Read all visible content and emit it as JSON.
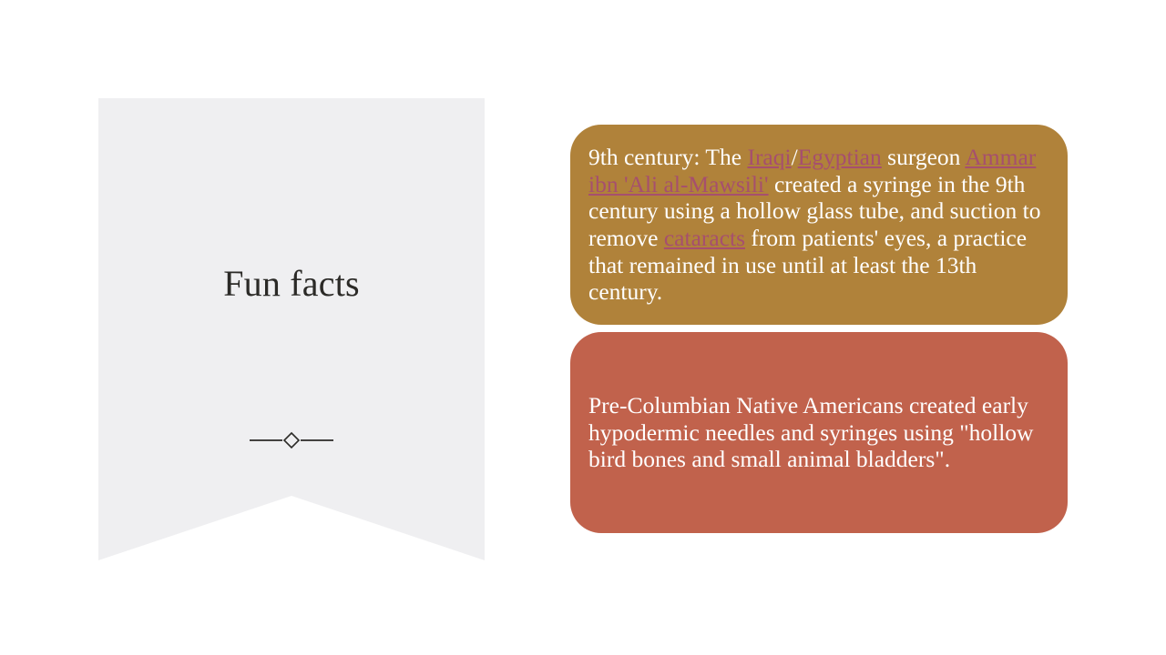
{
  "slide": {
    "title": "Fun facts"
  },
  "card1": {
    "text_1": "9th century: The ",
    "link_iraqi": "Iraqi",
    "slash": "/",
    "link_egyptian": "Egyptian",
    "text_2": " surgeon ",
    "link_ammar": "Ammar ibn 'Ali al-Mawsili'",
    "text_3": " created a syringe in the 9th century using a hollow glass tube, and suction to remove ",
    "link_cataracts": "cataracts",
    "text_4": " from patients' eyes, a practice that remained in use until at least the 13th century."
  },
  "card2": {
    "text": "Pre-Columbian Native Americans created early hypodermic needles and syringes using \"hollow bird bones and small animal bladders\"."
  },
  "colors": {
    "banner": "#efeff1",
    "card1_bg": "#b0823a",
    "card2_bg": "#c1624c",
    "link": "#a64f6e",
    "title_text": "#2b2a27"
  },
  "icons": {
    "divider": "diamond-line-divider"
  }
}
